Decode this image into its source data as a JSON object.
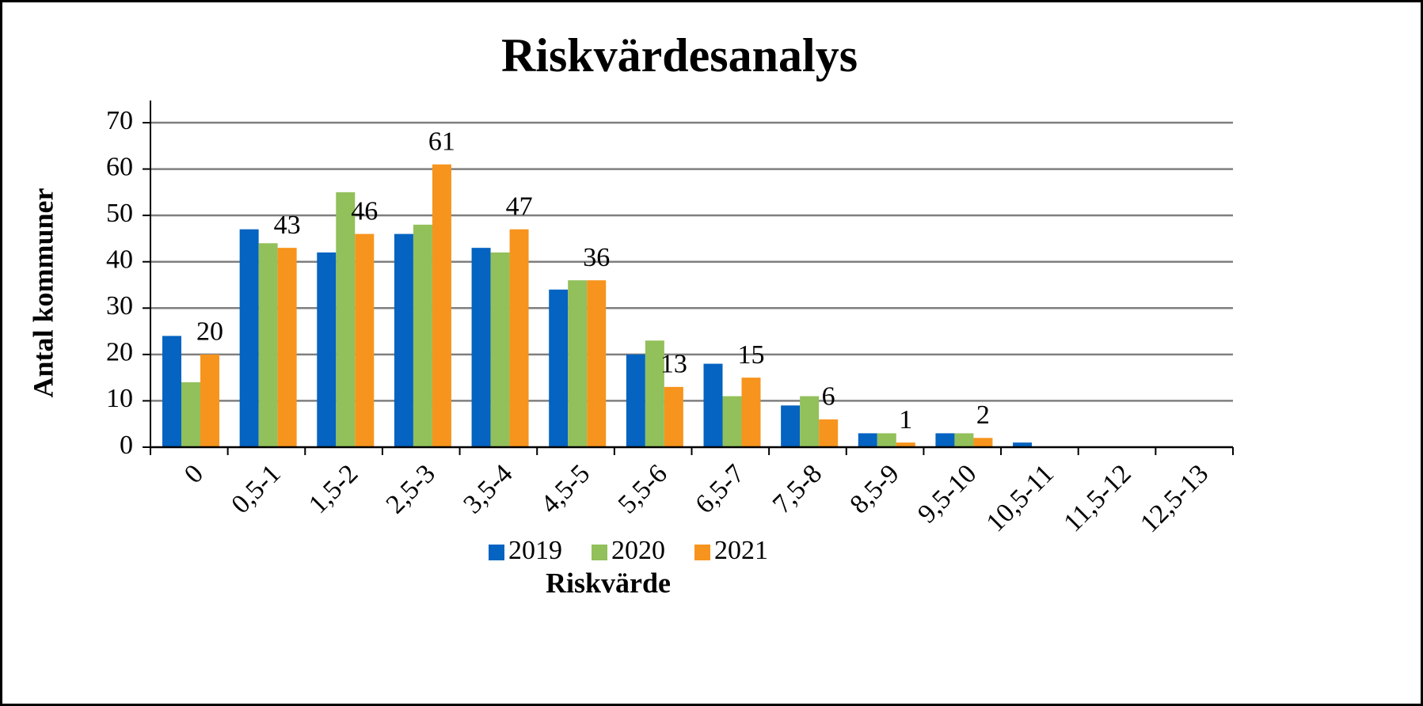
{
  "chart_data": {
    "type": "bar",
    "title": "Riskvärdesanalys",
    "xlabel": "Riskvärde",
    "ylabel": "Antal kommuner",
    "categories": [
      "0",
      "0,5-1",
      "1,5-2",
      "2,5-3",
      "3,5-4",
      "4,5-5",
      "5,5-6",
      "6,5-7",
      "7,5-8",
      "8,5-9",
      "9,5-10",
      "10,5-11",
      "11,5-12",
      "12,5-13"
    ],
    "series": [
      {
        "name": "2019",
        "color": "#0563c1",
        "values": [
          24,
          47,
          42,
          46,
          43,
          34,
          20,
          18,
          9,
          3,
          3,
          1,
          0,
          0
        ]
      },
      {
        "name": "2020",
        "color": "#92c05a",
        "values": [
          14,
          44,
          55,
          48,
          42,
          36,
          23,
          11,
          11,
          3,
          3,
          0,
          0,
          0
        ]
      },
      {
        "name": "2021",
        "color": "#f7941d",
        "values": [
          20,
          43,
          46,
          61,
          47,
          36,
          13,
          15,
          6,
          1,
          2,
          0,
          0,
          0
        ],
        "value_labels": [
          "20",
          "43",
          "46",
          "61",
          "47",
          "36",
          "13",
          "15",
          "6",
          "1",
          "2",
          null,
          null,
          null
        ]
      }
    ],
    "ylim": [
      0,
      70
    ],
    "yticks": [
      0,
      10,
      20,
      30,
      40,
      50,
      60,
      70
    ],
    "grid": true,
    "legend": "bottom"
  }
}
